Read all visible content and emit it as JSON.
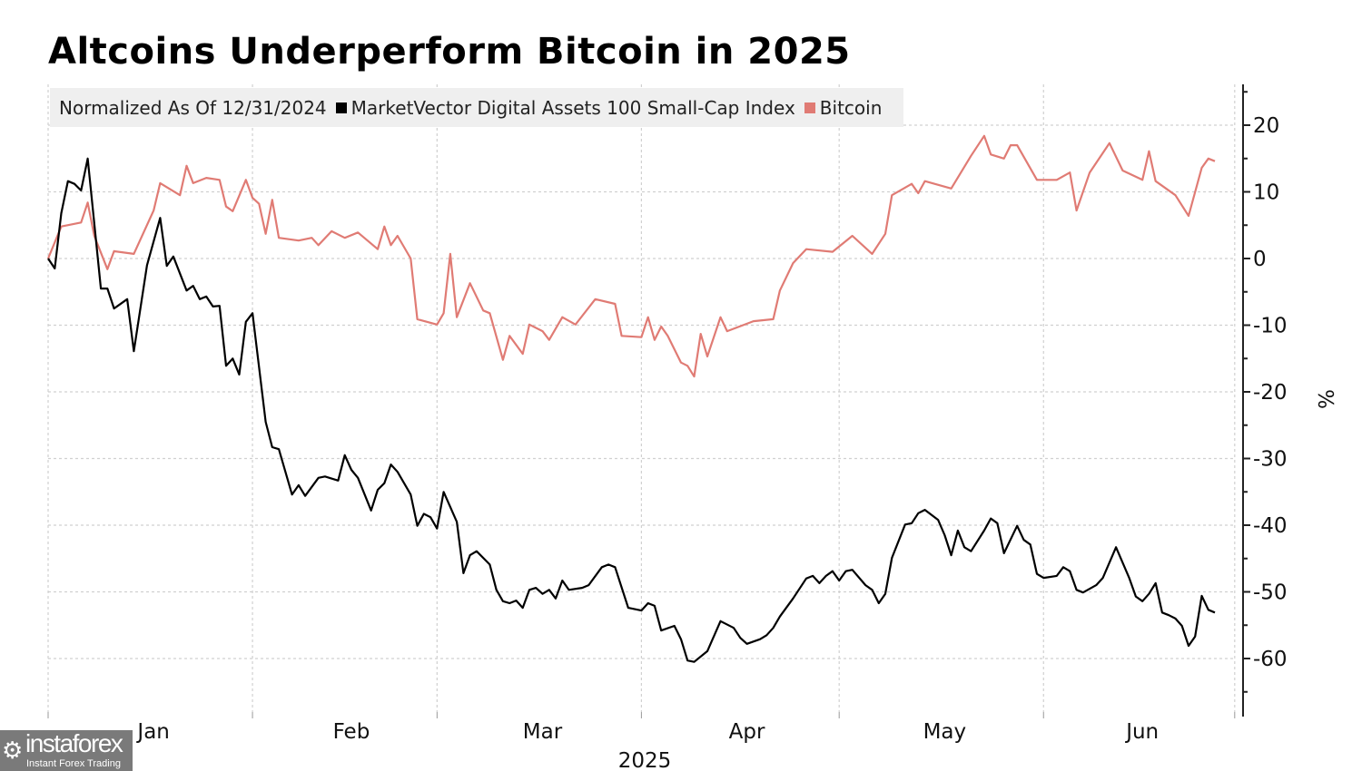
{
  "chart_data": {
    "type": "line",
    "title": "Altcoins Underperform Bitcoin in 2025",
    "legend_note": "Normalized As Of 12/31/2024",
    "legend_placement": "top-left",
    "xlabel": "2025",
    "ylabel": "%",
    "x_ticks": [
      "Jan",
      "Feb",
      "Mar",
      "Apr",
      "May",
      "Jun"
    ],
    "y_ticks": [
      20,
      10,
      0,
      -10,
      -20,
      -30,
      -40,
      -50,
      -60
    ],
    "ylim": [
      -70,
      26
    ],
    "xlim": [
      "2024-12-31",
      "2025-07-01"
    ],
    "grid": true,
    "series": [
      {
        "name": "MarketVector Digital Assets 100 Small-Cap Index",
        "color": "#000000",
        "points": [
          [
            "2024-12-31",
            0
          ],
          [
            "2025-01-01",
            -1.5
          ],
          [
            "2025-01-02",
            6.8
          ],
          [
            "2025-01-03",
            11.6
          ],
          [
            "2025-01-04",
            11.2
          ],
          [
            "2025-01-05",
            10.2
          ],
          [
            "2025-01-06",
            15.0
          ],
          [
            "2025-01-08",
            -4.5
          ],
          [
            "2025-01-09",
            -4.5
          ],
          [
            "2025-01-10",
            -7.5
          ],
          [
            "2025-01-12",
            -6.1
          ],
          [
            "2025-01-13",
            -13.9
          ],
          [
            "2025-01-15",
            -1.0
          ],
          [
            "2025-01-17",
            6.1
          ],
          [
            "2025-01-18",
            -1.1
          ],
          [
            "2025-01-19",
            0.3
          ],
          [
            "2025-01-21",
            -4.8
          ],
          [
            "2025-01-22",
            -4.1
          ],
          [
            "2025-01-23",
            -6.1
          ],
          [
            "2025-01-24",
            -5.7
          ],
          [
            "2025-01-25",
            -7.2
          ],
          [
            "2025-01-26",
            -7.1
          ],
          [
            "2025-01-27",
            -16.1
          ],
          [
            "2025-01-28",
            -15.0
          ],
          [
            "2025-01-29",
            -17.4
          ],
          [
            "2025-01-30",
            -9.5
          ],
          [
            "2025-01-31",
            -8.2
          ],
          [
            "2025-02-02",
            -24.5
          ],
          [
            "2025-02-03",
            -28.3
          ],
          [
            "2025-02-04",
            -28.6
          ],
          [
            "2025-02-06",
            -35.4
          ],
          [
            "2025-02-07",
            -34.0
          ],
          [
            "2025-02-08",
            -35.6
          ],
          [
            "2025-02-10",
            -32.9
          ],
          [
            "2025-02-11",
            -32.7
          ],
          [
            "2025-02-13",
            -33.3
          ],
          [
            "2025-02-14",
            -29.5
          ],
          [
            "2025-02-15",
            -31.7
          ],
          [
            "2025-02-16",
            -32.9
          ],
          [
            "2025-02-18",
            -37.8
          ],
          [
            "2025-02-19",
            -34.7
          ],
          [
            "2025-02-20",
            -33.7
          ],
          [
            "2025-02-21",
            -30.9
          ],
          [
            "2025-02-22",
            -32.0
          ],
          [
            "2025-02-24",
            -35.4
          ],
          [
            "2025-02-25",
            -40.1
          ],
          [
            "2025-02-26",
            -38.3
          ],
          [
            "2025-02-27",
            -38.8
          ],
          [
            "2025-02-28",
            -40.5
          ],
          [
            "2025-03-01",
            -35.0
          ],
          [
            "2025-03-03",
            -39.5
          ],
          [
            "2025-03-04",
            -47.2
          ],
          [
            "2025-03-05",
            -44.5
          ],
          [
            "2025-03-06",
            -43.9
          ],
          [
            "2025-03-08",
            -45.9
          ],
          [
            "2025-03-09",
            -49.7
          ],
          [
            "2025-03-10",
            -51.4
          ],
          [
            "2025-03-11",
            -51.7
          ],
          [
            "2025-03-12",
            -51.3
          ],
          [
            "2025-03-13",
            -52.4
          ],
          [
            "2025-03-14",
            -49.7
          ],
          [
            "2025-03-15",
            -49.4
          ],
          [
            "2025-03-16",
            -50.3
          ],
          [
            "2025-03-17",
            -49.7
          ],
          [
            "2025-03-18",
            -51.0
          ],
          [
            "2025-03-19",
            -48.3
          ],
          [
            "2025-03-20",
            -49.7
          ],
          [
            "2025-03-22",
            -49.4
          ],
          [
            "2025-03-23",
            -49.0
          ],
          [
            "2025-03-25",
            -46.3
          ],
          [
            "2025-03-26",
            -45.9
          ],
          [
            "2025-03-27",
            -46.3
          ],
          [
            "2025-03-29",
            -52.4
          ],
          [
            "2025-03-31",
            -52.8
          ],
          [
            "2025-04-01",
            -51.7
          ],
          [
            "2025-04-02",
            -52.1
          ],
          [
            "2025-04-03",
            -55.8
          ],
          [
            "2025-04-05",
            -55.1
          ],
          [
            "2025-04-06",
            -57.1
          ],
          [
            "2025-04-07",
            -60.3
          ],
          [
            "2025-04-08",
            -60.5
          ],
          [
            "2025-04-10",
            -58.9
          ],
          [
            "2025-04-12",
            -54.4
          ],
          [
            "2025-04-14",
            -55.4
          ],
          [
            "2025-04-15",
            -56.9
          ],
          [
            "2025-04-16",
            -57.8
          ],
          [
            "2025-04-18",
            -57.1
          ],
          [
            "2025-04-19",
            -56.5
          ],
          [
            "2025-04-20",
            -55.4
          ],
          [
            "2025-04-21",
            -53.7
          ],
          [
            "2025-04-23",
            -51.0
          ],
          [
            "2025-04-25",
            -48.0
          ],
          [
            "2025-04-26",
            -47.6
          ],
          [
            "2025-04-27",
            -48.7
          ],
          [
            "2025-04-28",
            -47.6
          ],
          [
            "2025-04-29",
            -46.9
          ],
          [
            "2025-04-30",
            -48.3
          ],
          [
            "2025-05-01",
            -46.9
          ],
          [
            "2025-05-02",
            -46.7
          ],
          [
            "2025-05-04",
            -49.0
          ],
          [
            "2025-05-05",
            -49.7
          ],
          [
            "2025-05-06",
            -51.7
          ],
          [
            "2025-05-07",
            -50.3
          ],
          [
            "2025-05-08",
            -44.9
          ],
          [
            "2025-05-10",
            -39.9
          ],
          [
            "2025-05-11",
            -39.7
          ],
          [
            "2025-05-12",
            -38.2
          ],
          [
            "2025-05-13",
            -37.7
          ],
          [
            "2025-05-15",
            -39.2
          ],
          [
            "2025-05-16",
            -41.5
          ],
          [
            "2025-05-17",
            -44.5
          ],
          [
            "2025-05-18",
            -40.8
          ],
          [
            "2025-05-19",
            -43.3
          ],
          [
            "2025-05-20",
            -43.9
          ],
          [
            "2025-05-22",
            -40.8
          ],
          [
            "2025-05-23",
            -39.0
          ],
          [
            "2025-05-24",
            -39.7
          ],
          [
            "2025-05-25",
            -44.2
          ],
          [
            "2025-05-27",
            -40.1
          ],
          [
            "2025-05-28",
            -42.2
          ],
          [
            "2025-05-29",
            -42.9
          ],
          [
            "2025-05-30",
            -47.3
          ],
          [
            "2025-05-31",
            -47.9
          ],
          [
            "2025-06-02",
            -47.6
          ],
          [
            "2025-06-03",
            -46.3
          ],
          [
            "2025-06-04",
            -46.9
          ],
          [
            "2025-06-05",
            -49.7
          ],
          [
            "2025-06-06",
            -50.1
          ],
          [
            "2025-06-08",
            -49.0
          ],
          [
            "2025-06-09",
            -47.9
          ],
          [
            "2025-06-11",
            -43.3
          ],
          [
            "2025-06-13",
            -47.9
          ],
          [
            "2025-06-14",
            -50.7
          ],
          [
            "2025-06-15",
            -51.4
          ],
          [
            "2025-06-16",
            -50.3
          ],
          [
            "2025-06-17",
            -48.7
          ],
          [
            "2025-06-18",
            -53.1
          ],
          [
            "2025-06-19",
            -53.5
          ],
          [
            "2025-06-20",
            -54.0
          ],
          [
            "2025-06-21",
            -55.1
          ],
          [
            "2025-06-22",
            -58.1
          ],
          [
            "2025-06-23",
            -56.7
          ],
          [
            "2025-06-24",
            -50.6
          ],
          [
            "2025-06-25",
            -52.7
          ],
          [
            "2025-06-26",
            -53.1
          ]
        ]
      },
      {
        "name": "Bitcoin",
        "color": "#e07b74",
        "points": [
          [
            "2024-12-31",
            0
          ],
          [
            "2025-01-02",
            4.8
          ],
          [
            "2025-01-05",
            5.4
          ],
          [
            "2025-01-06",
            8.4
          ],
          [
            "2025-01-07",
            3.4
          ],
          [
            "2025-01-09",
            -1.6
          ],
          [
            "2025-01-10",
            1.1
          ],
          [
            "2025-01-13",
            0.7
          ],
          [
            "2025-01-16",
            7.2
          ],
          [
            "2025-01-17",
            11.3
          ],
          [
            "2025-01-20",
            9.5
          ],
          [
            "2025-01-21",
            13.9
          ],
          [
            "2025-01-22",
            11.3
          ],
          [
            "2025-01-24",
            12.1
          ],
          [
            "2025-01-26",
            11.8
          ],
          [
            "2025-01-27",
            7.8
          ],
          [
            "2025-01-28",
            7.1
          ],
          [
            "2025-01-30",
            11.8
          ],
          [
            "2025-01-31",
            9.1
          ],
          [
            "2025-02-01",
            8.2
          ],
          [
            "2025-02-02",
            3.7
          ],
          [
            "2025-02-03",
            8.8
          ],
          [
            "2025-02-04",
            3.1
          ],
          [
            "2025-02-07",
            2.7
          ],
          [
            "2025-02-09",
            3.1
          ],
          [
            "2025-02-10",
            2.0
          ],
          [
            "2025-02-12",
            4.1
          ],
          [
            "2025-02-14",
            3.1
          ],
          [
            "2025-02-16",
            3.9
          ],
          [
            "2025-02-19",
            1.4
          ],
          [
            "2025-02-20",
            4.8
          ],
          [
            "2025-02-21",
            2.0
          ],
          [
            "2025-02-22",
            3.4
          ],
          [
            "2025-02-24",
            0
          ],
          [
            "2025-02-25",
            -9.1
          ],
          [
            "2025-02-28",
            -9.9
          ],
          [
            "2025-03-01",
            -8.2
          ],
          [
            "2025-03-02",
            0.7
          ],
          [
            "2025-03-03",
            -8.8
          ],
          [
            "2025-03-05",
            -3.7
          ],
          [
            "2025-03-07",
            -7.8
          ],
          [
            "2025-03-08",
            -8.2
          ],
          [
            "2025-03-10",
            -15.2
          ],
          [
            "2025-03-11",
            -11.6
          ],
          [
            "2025-03-13",
            -14.3
          ],
          [
            "2025-03-14",
            -9.9
          ],
          [
            "2025-03-16",
            -10.9
          ],
          [
            "2025-03-17",
            -12.2
          ],
          [
            "2025-03-19",
            -8.8
          ],
          [
            "2025-03-21",
            -9.9
          ],
          [
            "2025-03-24",
            -6.1
          ],
          [
            "2025-03-27",
            -6.8
          ],
          [
            "2025-03-28",
            -11.6
          ],
          [
            "2025-03-31",
            -11.8
          ],
          [
            "2025-04-01",
            -8.8
          ],
          [
            "2025-04-02",
            -12.2
          ],
          [
            "2025-04-03",
            -10.2
          ],
          [
            "2025-04-04",
            -11.6
          ],
          [
            "2025-04-06",
            -15.6
          ],
          [
            "2025-04-07",
            -16.1
          ],
          [
            "2025-04-08",
            -17.7
          ],
          [
            "2025-04-09",
            -11.3
          ],
          [
            "2025-04-10",
            -14.7
          ],
          [
            "2025-04-12",
            -8.8
          ],
          [
            "2025-04-13",
            -10.9
          ],
          [
            "2025-04-17",
            -9.4
          ],
          [
            "2025-04-20",
            -9.1
          ],
          [
            "2025-04-21",
            -4.8
          ],
          [
            "2025-04-23",
            -0.7
          ],
          [
            "2025-04-25",
            1.4
          ],
          [
            "2025-04-29",
            1.0
          ],
          [
            "2025-05-02",
            3.4
          ],
          [
            "2025-05-05",
            0.7
          ],
          [
            "2025-05-07",
            3.7
          ],
          [
            "2025-05-08",
            9.5
          ],
          [
            "2025-05-11",
            11.2
          ],
          [
            "2025-05-12",
            9.8
          ],
          [
            "2025-05-13",
            11.6
          ],
          [
            "2025-05-17",
            10.5
          ],
          [
            "2025-05-20",
            15.4
          ],
          [
            "2025-05-22",
            18.4
          ],
          [
            "2025-05-23",
            15.6
          ],
          [
            "2025-05-25",
            15.0
          ],
          [
            "2025-05-26",
            17.0
          ],
          [
            "2025-05-27",
            17.0
          ],
          [
            "2025-05-30",
            11.8
          ],
          [
            "2025-06-02",
            11.8
          ],
          [
            "2025-06-04",
            12.9
          ],
          [
            "2025-06-05",
            7.2
          ],
          [
            "2025-06-07",
            12.9
          ],
          [
            "2025-06-10",
            17.3
          ],
          [
            "2025-06-12",
            13.2
          ],
          [
            "2025-06-15",
            11.8
          ],
          [
            "2025-06-16",
            16.1
          ],
          [
            "2025-06-17",
            11.6
          ],
          [
            "2025-06-20",
            9.5
          ],
          [
            "2025-06-22",
            6.4
          ],
          [
            "2025-06-24",
            13.6
          ],
          [
            "2025-06-25",
            15.0
          ],
          [
            "2025-06-26",
            14.6
          ]
        ]
      }
    ]
  },
  "watermark": {
    "brand": "instaforex",
    "tagline": "Instant Forex Trading"
  }
}
